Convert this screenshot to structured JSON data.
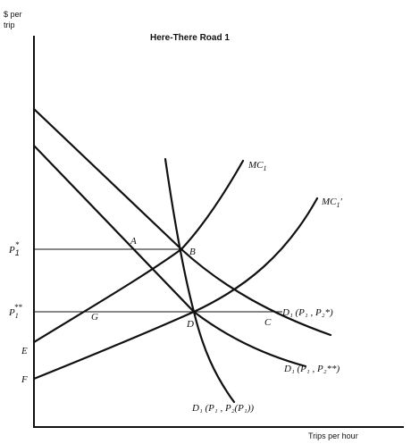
{
  "title": "Here-There Road 1",
  "axes": {
    "y_label_line1": "$ per",
    "y_label_line2": "trip",
    "x_label": "Trips per hour"
  },
  "price_labels": {
    "p1_star": {
      "base": "P",
      "sub": "1",
      "sup": "*"
    },
    "p1_star_star": {
      "base": "P",
      "sub": "1",
      "sup": "**"
    }
  },
  "points": {
    "A": "A",
    "B": "B",
    "C": "C",
    "D": "D",
    "E": "E",
    "F": "F",
    "G": "G"
  },
  "curves": {
    "mc1": {
      "base": "MC",
      "sub": "1",
      "suffix": ""
    },
    "mc1_prime": {
      "base": "MC",
      "sub": "1",
      "suffix": "′"
    },
    "d1_p2star": {
      "text": "D₁ (P₁ , P₂*)"
    },
    "d1_p2starstar": {
      "text": "D₁ (P₁ , P₂**)"
    },
    "d1_p2p1": {
      "text": "D₁ (P₁ , P₂(P₁))"
    }
  }
}
